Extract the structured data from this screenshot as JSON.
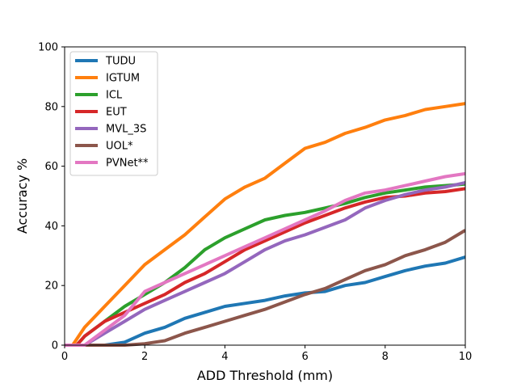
{
  "chart_data": {
    "type": "line",
    "xlabel": "ADD Threshold (mm)",
    "ylabel": "Accuracy %",
    "xlim": [
      0,
      10
    ],
    "ylim": [
      0,
      100
    ],
    "xticks": [
      0,
      2,
      4,
      6,
      8,
      10
    ],
    "yticks": [
      0,
      20,
      40,
      60,
      80,
      100
    ],
    "grid": false,
    "legend_position": "top-left",
    "series": [
      {
        "name": "TUDU",
        "color": "#1f77b4",
        "x": [
          0,
          0.5,
          1.0,
          1.5,
          2.0,
          2.5,
          3.0,
          3.5,
          4.0,
          4.5,
          5.0,
          5.5,
          6.0,
          6.5,
          7.0,
          7.5,
          8.0,
          8.5,
          9.0,
          9.5,
          10.0
        ],
        "y": [
          0,
          0,
          0,
          1,
          4,
          6,
          9,
          11,
          13,
          14,
          15,
          16.5,
          17.5,
          18,
          20,
          21,
          23,
          25,
          26.5,
          27.5,
          29.5
        ]
      },
      {
        "name": "IGTUM",
        "color": "#ff7f0e",
        "x": [
          0,
          0.2,
          0.5,
          1.0,
          1.5,
          2.0,
          2.5,
          3.0,
          3.5,
          4.0,
          4.5,
          5.0,
          5.5,
          6.0,
          6.5,
          7.0,
          7.5,
          8.0,
          8.5,
          9.0,
          9.5,
          10.0
        ],
        "y": [
          0,
          0,
          6,
          13,
          20,
          27,
          32,
          37,
          43,
          49,
          53,
          56,
          61,
          66,
          68,
          71,
          73,
          75.5,
          77,
          79,
          80,
          81
        ]
      },
      {
        "name": "ICL",
        "color": "#2ca02c",
        "x": [
          0,
          0.3,
          0.5,
          1.0,
          1.5,
          2.0,
          2.5,
          3.0,
          3.5,
          4.0,
          4.5,
          5.0,
          5.5,
          6.0,
          6.5,
          7.0,
          7.5,
          8.0,
          8.5,
          9.0,
          9.5,
          10.0
        ],
        "y": [
          0,
          0,
          3,
          8,
          13,
          17,
          21,
          26,
          32,
          36,
          39,
          42,
          43.5,
          44.5,
          46,
          47.5,
          49.5,
          51,
          52,
          53,
          53.5,
          54
        ]
      },
      {
        "name": "EUT",
        "color": "#d62728",
        "x": [
          0,
          0.3,
          0.5,
          1.0,
          1.5,
          2.0,
          2.5,
          3.0,
          3.5,
          4.0,
          4.5,
          5.0,
          5.5,
          6.0,
          6.5,
          7.0,
          7.5,
          8.0,
          8.5,
          9.0,
          9.5,
          10.0
        ],
        "y": [
          0,
          0,
          3,
          8,
          11,
          14,
          17,
          21,
          24,
          28,
          32,
          35,
          38,
          41,
          43.5,
          46,
          48,
          49.5,
          50,
          51,
          51.5,
          52.5
        ]
      },
      {
        "name": "MVL_3S",
        "color": "#9467bd",
        "x": [
          0,
          0.5,
          1.0,
          1.5,
          2.0,
          2.5,
          3.0,
          3.5,
          4.0,
          4.5,
          5.0,
          5.5,
          6.0,
          6.5,
          7.0,
          7.5,
          8.0,
          8.5,
          9.0,
          9.5,
          10.0
        ],
        "y": [
          0,
          0,
          4,
          8,
          12,
          15,
          18,
          21,
          24,
          28,
          32,
          35,
          37,
          39.5,
          42,
          46,
          48.5,
          50.5,
          52,
          53,
          54.5
        ]
      },
      {
        "name": "UOL*",
        "color": "#8c564b",
        "x": [
          0,
          0.8,
          1.5,
          2.0,
          2.5,
          3.0,
          3.5,
          4.0,
          4.5,
          5.0,
          5.5,
          6.0,
          6.5,
          7.0,
          7.5,
          8.0,
          8.5,
          9.0,
          9.5,
          10.0
        ],
        "y": [
          0,
          0,
          0,
          0.5,
          1.5,
          4,
          6,
          8,
          10,
          12,
          14.5,
          17,
          19,
          22,
          25,
          27,
          30,
          32,
          34.5,
          38.5
        ]
      },
      {
        "name": "PVNet**",
        "color": "#e377c2",
        "x": [
          0,
          0.5,
          1.0,
          1.5,
          2.0,
          2.5,
          3.0,
          3.5,
          4.0,
          4.5,
          5.0,
          5.5,
          6.0,
          6.5,
          7.0,
          7.5,
          8.0,
          8.5,
          9.0,
          9.5,
          10.0
        ],
        "y": [
          0,
          0,
          5,
          10,
          18,
          21,
          24,
          27,
          30,
          33,
          36,
          39,
          42,
          45,
          48.5,
          51,
          52,
          53.5,
          55,
          56.5,
          57.5
        ]
      }
    ]
  }
}
